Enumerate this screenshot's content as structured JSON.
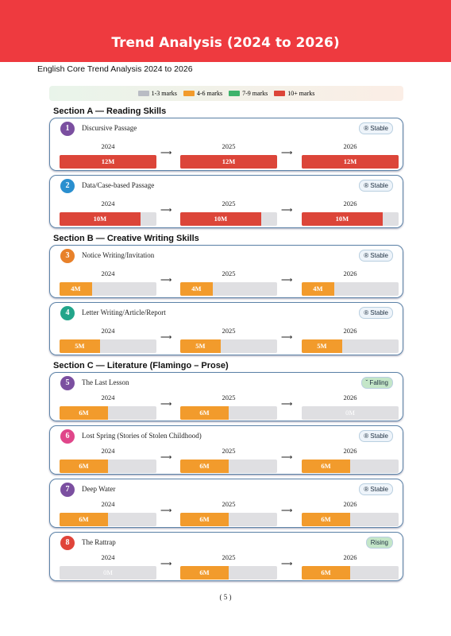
{
  "header": {
    "title": "Trend Analysis (2024 to 2026)"
  },
  "subtitle": "English Core Trend Analysis 2024 to 2026",
  "legend": [
    {
      "label": "1-3 marks",
      "color": "#b9bcc4"
    },
    {
      "label": "4-6 marks",
      "color": "#f29b2c"
    },
    {
      "label": "7-9 marks",
      "color": "#3db36b"
    },
    {
      "label": "10+ marks",
      "color": "#dc4539"
    }
  ],
  "sections": [
    {
      "title": "Section A — Reading Skills",
      "cards": [
        {
          "number": "1",
          "number_color": "#7b4fa0",
          "title": "Discursive Passage",
          "status": "® Stable",
          "status_color": "#eef4fa",
          "years": [
            "2024",
            "2025",
            "2026"
          ],
          "marks": [
            {
              "value": 12,
              "label": "12M",
              "color": "#dc4539"
            },
            {
              "value": 12,
              "label": "12M",
              "color": "#dc4539"
            },
            {
              "value": 12,
              "label": "12M",
              "color": "#dc4539"
            }
          ]
        },
        {
          "number": "2",
          "number_color": "#2a8fcf",
          "title": "Data/Case-based Passage",
          "status": "® Stable",
          "status_color": "#eef4fa",
          "years": [
            "2024",
            "2025",
            "2026"
          ],
          "marks": [
            {
              "value": 10,
              "label": "10M",
              "color": "#dc4539"
            },
            {
              "value": 10,
              "label": "10M",
              "color": "#dc4539"
            },
            {
              "value": 10,
              "label": "10M",
              "color": "#dc4539"
            }
          ]
        }
      ]
    },
    {
      "title": "Section B — Creative Writing Skills",
      "cards": [
        {
          "number": "3",
          "number_color": "#e8812a",
          "title": "Notice Writing/Invitation",
          "status": "® Stable",
          "status_color": "#eef4fa",
          "years": [
            "2024",
            "2025",
            "2026"
          ],
          "marks": [
            {
              "value": 4,
              "label": "4M",
              "color": "#f29b2c"
            },
            {
              "value": 4,
              "label": "4M",
              "color": "#f29b2c"
            },
            {
              "value": 4,
              "label": "4M",
              "color": "#f29b2c"
            }
          ]
        },
        {
          "number": "4",
          "number_color": "#22a58a",
          "title": "Letter Writing/Article/Report",
          "status": "® Stable",
          "status_color": "#eef4fa",
          "years": [
            "2024",
            "2025",
            "2026"
          ],
          "marks": [
            {
              "value": 5,
              "label": "5M",
              "color": "#f29b2c"
            },
            {
              "value": 5,
              "label": "5M",
              "color": "#f29b2c"
            },
            {
              "value": 5,
              "label": "5M",
              "color": "#f29b2c"
            }
          ]
        }
      ]
    },
    {
      "title": "Section C — Literature (Flamingo – Prose)",
      "cards": [
        {
          "number": "5",
          "number_color": "#7b4fa0",
          "title": "The Last Lesson",
          "status": "ˇ Falling",
          "status_color": "#c4e6c8",
          "years": [
            "2024",
            "2025",
            "2026"
          ],
          "marks": [
            {
              "value": 6,
              "label": "6M",
              "color": "#f29b2c"
            },
            {
              "value": 6,
              "label": "6M",
              "color": "#f29b2c"
            },
            {
              "value": 0,
              "label": "0M",
              "color": "#dfdfe2"
            }
          ]
        },
        {
          "number": "6",
          "number_color": "#e0468a",
          "title": "Lost Spring (Stories of Stolen Childhood)",
          "status": "® Stable",
          "status_color": "#eef4fa",
          "years": [
            "2024",
            "2025",
            "2026"
          ],
          "marks": [
            {
              "value": 6,
              "label": "6M",
              "color": "#f29b2c"
            },
            {
              "value": 6,
              "label": "6M",
              "color": "#f29b2c"
            },
            {
              "value": 6,
              "label": "6M",
              "color": "#f29b2c"
            }
          ]
        },
        {
          "number": "7",
          "number_color": "#7b4fa0",
          "title": "Deep Water",
          "status": "® Stable",
          "status_color": "#eef4fa",
          "years": [
            "2024",
            "2025",
            "2026"
          ],
          "marks": [
            {
              "value": 6,
              "label": "6M",
              "color": "#f29b2c"
            },
            {
              "value": 6,
              "label": "6M",
              "color": "#f29b2c"
            },
            {
              "value": 6,
              "label": "6M",
              "color": "#f29b2c"
            }
          ]
        },
        {
          "number": "8",
          "number_color": "#e0443a",
          "title": "The Rattrap",
          "status": "Rising",
          "status_color": "#c4e6c8",
          "years": [
            "2024",
            "2025",
            "2026"
          ],
          "marks": [
            {
              "value": 0,
              "label": "0M",
              "color": "#dfdfe2"
            },
            {
              "value": 6,
              "label": "6M",
              "color": "#f29b2c"
            },
            {
              "value": 6,
              "label": "6M",
              "color": "#f29b2c"
            }
          ]
        }
      ]
    }
  ],
  "page_number": "( 5 )"
}
